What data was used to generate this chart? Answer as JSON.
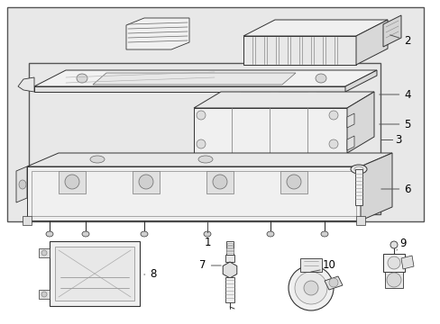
{
  "bg_color": "#ffffff",
  "outer_bg": "#e8e8e8",
  "inner_bg": "#e8e8e8",
  "line_color": "#333333",
  "label_color": "#000000",
  "label_fontsize": 8.5,
  "fig_w": 4.89,
  "fig_h": 3.6,
  "dpi": 100
}
